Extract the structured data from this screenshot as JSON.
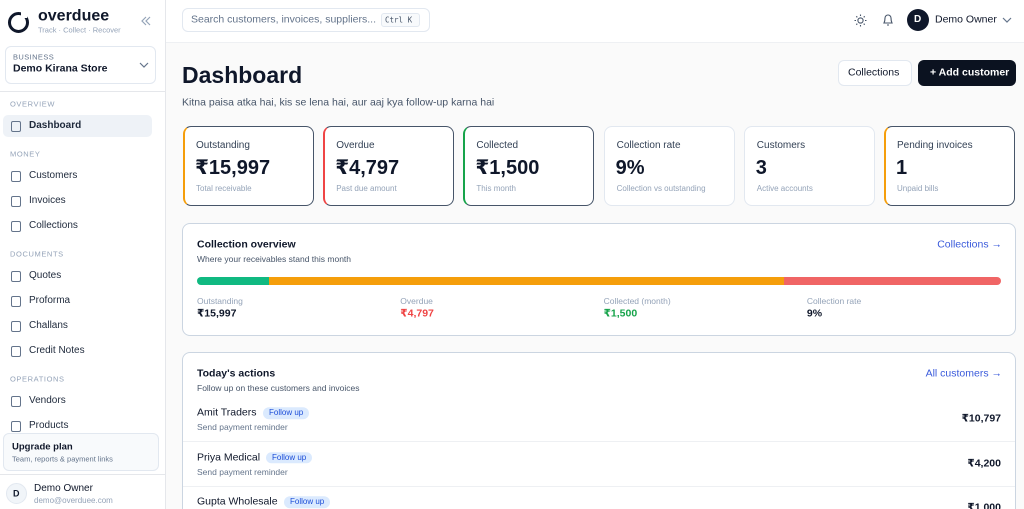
{
  "sidebar": {
    "brand": "overduee",
    "tagline": "Track · Collect · Recover",
    "business_label": "BUSINESS",
    "business_name": "Demo Kirana Store",
    "sections": [
      {
        "label": "OVERVIEW",
        "items": [
          "Dashboard"
        ]
      },
      {
        "label": "MONEY",
        "items": [
          "Customers",
          "Invoices",
          "Collections"
        ]
      },
      {
        "label": "DOCUMENTS",
        "items": [
          "Quotes",
          "Proforma",
          "Challans",
          "Credit Notes"
        ]
      },
      {
        "label": "OPERATIONS",
        "items": [
          "Vendors",
          "Products"
        ]
      }
    ],
    "upgrade": {
      "title": "Upgrade plan",
      "text": "Team, reports & payment links"
    },
    "user": {
      "initial": "D",
      "name": "Demo Owner",
      "email": "demo@overduee.com"
    }
  },
  "topbar": {
    "search_placeholder": "Search customers, invoices, suppliers...",
    "shortcut": "Ctrl K",
    "user_initial": "D",
    "user_name": "Demo Owner"
  },
  "header": {
    "title": "Dashboard",
    "subtitle": "Kitna paisa atka hai, kis se lena hai, aur aaj kya follow-up karna hai",
    "buttons": [
      "Collections",
      "+ Add customer"
    ]
  },
  "stats": [
    {
      "label": "Outstanding",
      "value": "₹15,997",
      "note": "Total receivable",
      "accent": "#f59e0b"
    },
    {
      "label": "Overdue",
      "value": "₹4,797",
      "note": "Past due amount",
      "accent": "#ef4444"
    },
    {
      "label": "Collected",
      "value": "₹1,500",
      "note": "This month",
      "accent": "#16a34a"
    },
    {
      "label": "Collection rate",
      "value": "9%",
      "note": "Collection vs outstanding"
    },
    {
      "label": "Customers",
      "value": "3",
      "note": "Active accounts"
    },
    {
      "label": "Pending invoices",
      "value": "1",
      "note": "Unpaid bills",
      "accent": "#f59e0b"
    }
  ],
  "overview": {
    "title": "Collection overview",
    "subtitle": "Where your receivables stand this month",
    "link": "Collections →",
    "items": [
      {
        "label": "Outstanding",
        "value": "₹15,997"
      },
      {
        "label": "Overdue",
        "value": "₹4,797",
        "color": "#ef4444"
      },
      {
        "label": "Collected (month)",
        "value": "₹1,500",
        "color": "#16a34a"
      },
      {
        "label": "Collection rate",
        "value": "9%"
      }
    ]
  },
  "actions": {
    "title": "Today's actions",
    "subtitle": "Follow up on these customers and invoices",
    "link": "All customers →",
    "rows": [
      {
        "name": "Amit Traders",
        "tag": "Follow up",
        "note": "Send payment reminder",
        "amount": "₹10,797"
      },
      {
        "name": "Priya Medical",
        "tag": "Follow up",
        "note": "Send payment reminder",
        "amount": "₹4,200"
      },
      {
        "name": "Gupta Wholesale",
        "tag": "Follow up",
        "amount": "₹1,000"
      }
    ]
  }
}
